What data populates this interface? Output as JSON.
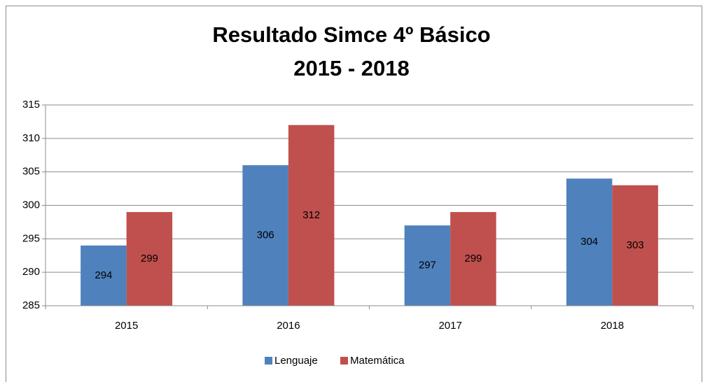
{
  "chart_data": {
    "type": "bar",
    "title": [
      "Resultado Simce 4º Básico",
      "2015 - 2018"
    ],
    "categories": [
      "2015",
      "2016",
      "2017",
      "2018"
    ],
    "series": [
      {
        "name": "Lenguaje",
        "color": "#4f81bd",
        "values": [
          294,
          306,
          297,
          304
        ]
      },
      {
        "name": "Matemática",
        "color": "#c0504d",
        "values": [
          299,
          312,
          299,
          303
        ]
      }
    ],
    "ylim": [
      285,
      315
    ],
    "yticks": [
      285,
      290,
      295,
      300,
      305,
      310,
      315
    ],
    "grid": true,
    "legend": "bottom"
  }
}
